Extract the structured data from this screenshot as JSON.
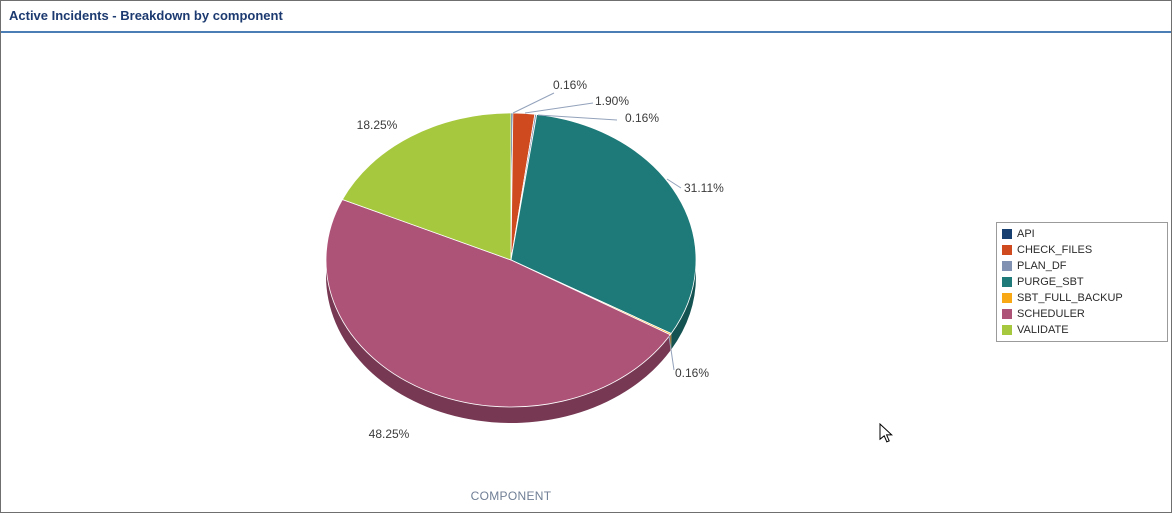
{
  "window": {
    "title": "Active Incidents - Breakdown by component"
  },
  "chart_data": {
    "type": "pie",
    "title": "Active Incidents - Breakdown by component",
    "xlabel": "COMPONENT",
    "legend_position": "right",
    "effect": "3d",
    "slices": [
      {
        "label": "API",
        "value": 0.16,
        "percent": "0.16%",
        "color": "#173f6f"
      },
      {
        "label": "CHECK_FILES",
        "value": 1.9,
        "percent": "1.90%",
        "color": "#cf4a1e"
      },
      {
        "label": "PLAN_DF",
        "value": 0.16,
        "percent": "0.16%",
        "color": "#8191b2"
      },
      {
        "label": "PURGE_SBT",
        "value": 31.11,
        "percent": "31.11%",
        "color": "#1d7a78"
      },
      {
        "label": "SBT_FULL_BACKUP",
        "value": 0.16,
        "percent": "0.16%",
        "color": "#f9a815"
      },
      {
        "label": "SCHEDULER",
        "value": 48.25,
        "percent": "48.25%",
        "color": "#ae5378"
      },
      {
        "label": "VALIDATE",
        "value": 18.25,
        "percent": "18.25%",
        "color": "#a6c83e"
      }
    ],
    "colors": {
      "header_rule": "#4a7eb5",
      "title_text": "#1c3a70",
      "axis_label_text": "#6f7e95",
      "leader_line": "#93a2bb"
    }
  }
}
